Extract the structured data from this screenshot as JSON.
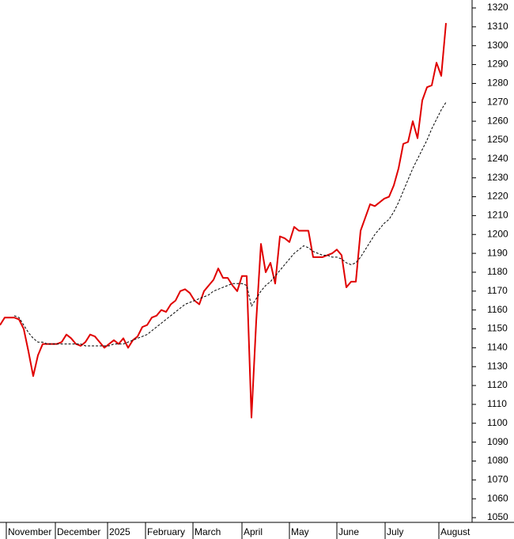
{
  "chart_data": {
    "type": "line",
    "xlim": [
      0,
      99.5
    ],
    "xticks": [
      {
        "value": 1.33,
        "label": "November"
      },
      {
        "value": 11.67,
        "label": "December"
      },
      {
        "value": 22.67,
        "label": "2025"
      },
      {
        "value": 30.67,
        "label": "February"
      },
      {
        "value": 40.67,
        "label": "March"
      },
      {
        "value": 51,
        "label": "April"
      },
      {
        "value": 61,
        "label": "May"
      },
      {
        "value": 71,
        "label": "June"
      },
      {
        "value": 81.17,
        "label": "July"
      },
      {
        "value": 92.5,
        "label": "August"
      }
    ],
    "ylim": [
      1047.5,
      1324.2
    ],
    "yticks": [
      1050,
      1060,
      1070,
      1080,
      1090,
      1100,
      1110,
      1120,
      1130,
      1140,
      1150,
      1160,
      1170,
      1180,
      1190,
      1200,
      1210,
      1220,
      1230,
      1240,
      1250,
      1260,
      1270,
      1280,
      1290,
      1300,
      1310,
      1320
    ],
    "grid": false,
    "series": [
      {
        "color": "#e00000",
        "dashed": false,
        "values": [
          1152,
          1156,
          1156,
          1156,
          1155,
          1150,
          1138,
          1125,
          1136,
          1142,
          1142,
          1142,
          1142,
          1143,
          1147,
          1145,
          1142,
          1141,
          1143,
          1147,
          1146,
          1143,
          1140,
          1142,
          1144,
          1142,
          1145,
          1140,
          1144,
          1146,
          1151,
          1152,
          1156,
          1157,
          1160,
          1159,
          1163,
          1165,
          1170,
          1171,
          1169,
          1165,
          1163,
          1170,
          1173,
          1176,
          1182,
          1177,
          1177,
          1173,
          1170,
          1178,
          1178,
          1103,
          1154,
          1195,
          1180,
          1185,
          1174,
          1199,
          1198,
          1196,
          1204,
          1202,
          1202,
          1202,
          1188,
          1188,
          1188,
          1189,
          1190,
          1192,
          1189,
          1172,
          1175,
          1175,
          1202,
          1209,
          1216,
          1215,
          1217,
          1219,
          1220,
          1226,
          1235,
          1248,
          1249,
          1260,
          1251,
          1271,
          1278,
          1279,
          1291,
          1284,
          1312
        ]
      },
      {
        "color": "#000000",
        "dashed": true,
        "values": [
          null,
          null,
          null,
          1157,
          1156,
          1152,
          1148,
          1145,
          1143,
          1143,
          1142,
          1142,
          1142,
          1142,
          1142,
          1142,
          1142,
          1142,
          1141,
          1141,
          1141,
          1141,
          1141,
          1141,
          1142,
          1142,
          1142,
          1143,
          1144,
          1145,
          1146,
          1147,
          1149,
          1151,
          1153,
          1155,
          1157,
          1159,
          1161,
          1163,
          1164,
          1165,
          1166,
          1167,
          1168,
          1170,
          1171,
          1172,
          1173,
          1174,
          1174,
          1174,
          1173,
          1162,
          1166,
          1170,
          1173,
          1175,
          1178,
          1181,
          1184,
          1187,
          1190,
          1192,
          1194,
          1193,
          1191,
          1190,
          1189,
          1189,
          1188,
          1188,
          1187,
          1185,
          1184,
          1185,
          1188,
          1192,
          1196,
          1200,
          1203,
          1206,
          1208,
          1212,
          1217,
          1223,
          1229,
          1235,
          1240,
          1245,
          1250,
          1256,
          1261,
          1266,
          1270
        ]
      }
    ]
  }
}
